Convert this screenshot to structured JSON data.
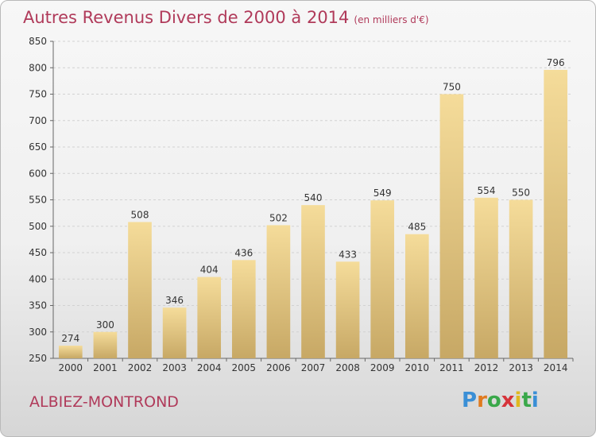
{
  "header": {
    "title": "Autres Revenus Divers de 2000 à 2014",
    "subtitle": "(en milliers d'€)"
  },
  "footer": {
    "commune": "ALBIEZ-MONTROND",
    "logo_letters": [
      "P",
      "r",
      "o",
      "x",
      "i",
      "t",
      "i"
    ],
    "logo_colors": [
      "#3a8fd6",
      "#e07a1f",
      "#3aa84a",
      "#d6333a",
      "#e0b81f",
      "#3aa84a",
      "#3a8fd6"
    ]
  },
  "chart_data": {
    "type": "bar",
    "title": "Autres Revenus Divers de 2000 à 2014",
    "subtitle": "(en milliers d'€)",
    "categories": [
      "2000",
      "2001",
      "2002",
      "2003",
      "2004",
      "2005",
      "2006",
      "2007",
      "2008",
      "2009",
      "2010",
      "2011",
      "2012",
      "2013",
      "2014"
    ],
    "values": [
      274,
      300,
      508,
      346,
      404,
      436,
      502,
      540,
      433,
      549,
      485,
      750,
      554,
      550,
      796
    ],
    "ylim": [
      250,
      850
    ],
    "yticks": [
      250,
      300,
      350,
      400,
      450,
      500,
      550,
      600,
      650,
      700,
      750,
      800,
      850
    ],
    "grid": true,
    "bar_color_light": "#f5dc9a",
    "bar_color_dark": "#c7a865"
  }
}
